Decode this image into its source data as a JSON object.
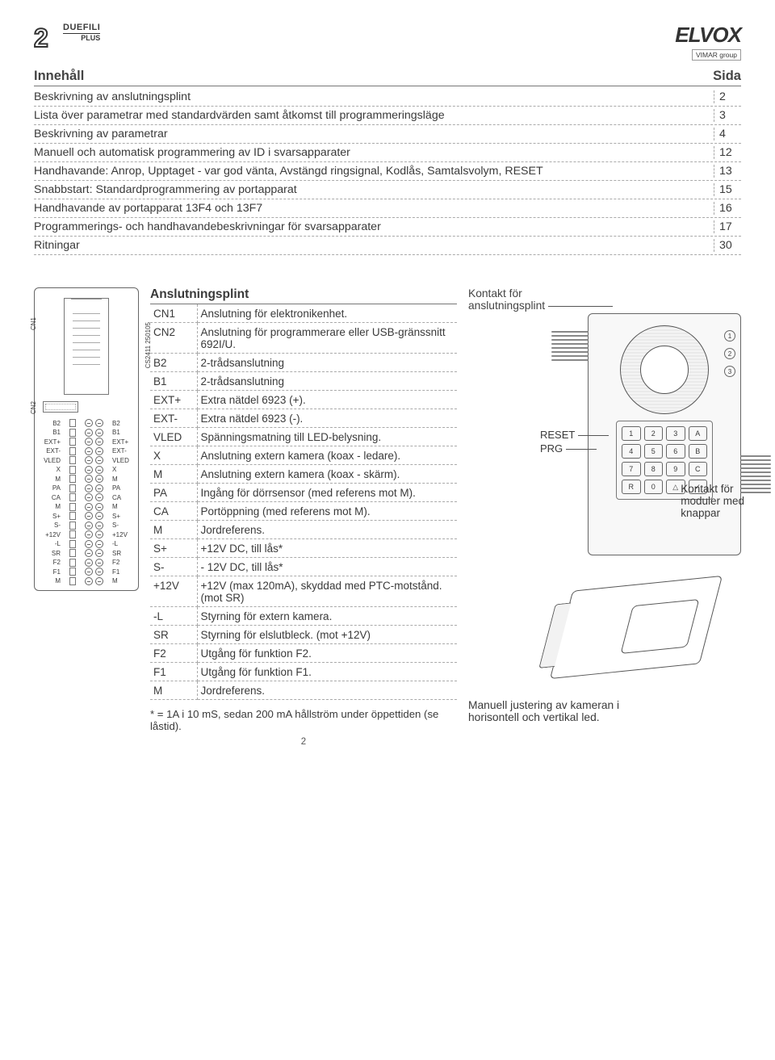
{
  "header": {
    "logo_left_main": "DUEFILI",
    "logo_left_sub": "PLUS",
    "logo_right_brand": "ELVOX",
    "logo_right_sub": "VIMAR group"
  },
  "toc": {
    "title_left": "Innehåll",
    "title_right": "Sida",
    "rows": [
      {
        "label": "Beskrivning av anslutningsplint",
        "page": "2"
      },
      {
        "label": "Lista över parametrar med standardvärden samt åtkomst till programmeringsläge",
        "page": "3"
      },
      {
        "label": "Beskrivning av parametrar",
        "page": "4"
      },
      {
        "label": "Manuell och automatisk programmering av ID i svarsapparater",
        "page": "12"
      },
      {
        "label": "Handhavande: Anrop, Upptaget - var god vänta, Avstängd ringsignal, Kodlås, Samtalsvolym, RESET",
        "page": "13"
      },
      {
        "label": "Snabbstart: Standardprogrammering av portapparat",
        "page": "15"
      },
      {
        "label": "Handhavande av portapparat 13F4 och 13F7",
        "page": "16"
      },
      {
        "label": "Programmerings- och handhavandebeskrivningar för svarsapparater",
        "page": "17"
      },
      {
        "label": "Ritningar",
        "page": "30"
      }
    ]
  },
  "splint": {
    "cn1": "CN1",
    "cn2": "CN2",
    "cs": "CS2411 250105",
    "terms": [
      "B2",
      "B1",
      "EXT+",
      "EXT-",
      "VLED",
      "X",
      "M",
      "PA",
      "CA",
      "M",
      "S+",
      "S-",
      "+12V",
      "-L",
      "SR",
      "F2",
      "F1",
      "M"
    ]
  },
  "atable": {
    "title": "Anslutningsplint",
    "rows": [
      {
        "k": "CN1",
        "v": "Anslutning för elektronikenhet."
      },
      {
        "k": "CN2",
        "v": "Anslutning för programmerare eller USB-gränssnitt 692I/U."
      },
      {
        "k": "B2",
        "v": "2-trådsanslutning"
      },
      {
        "k": "B1",
        "v": "2-trådsanslutning"
      },
      {
        "k": "EXT+",
        "v": "Extra nätdel 6923 (+)."
      },
      {
        "k": "EXT-",
        "v": "Extra nätdel 6923 (-)."
      },
      {
        "k": "VLED",
        "v": "Spänningsmatning till LED-belysning."
      },
      {
        "k": "X",
        "v": "Anslutning extern kamera (koax - ledare)."
      },
      {
        "k": "M",
        "v": "Anslutning extern kamera (koax - skärm)."
      },
      {
        "k": "PA",
        "v": "Ingång för dörrsensor (med referens mot M)."
      },
      {
        "k": "CA",
        "v": "Portöppning (med referens mot M)."
      },
      {
        "k": "M",
        "v": "Jordreferens."
      },
      {
        "k": "S+",
        "v": "+12V DC, till lås*"
      },
      {
        "k": "S-",
        "v": "- 12V DC, till lås*"
      },
      {
        "k": "+12V",
        "v": "+12V (max 120mA), skyddad med PTC-motstånd. (mot SR)"
      },
      {
        "k": "-L",
        "v": "Styrning för extern kamera."
      },
      {
        "k": "SR",
        "v": "Styrning för elslutbleck. (mot +12V)"
      },
      {
        "k": "F2",
        "v": "Utgång för funktion F2."
      },
      {
        "k": "F1",
        "v": "Utgång för funktion F1."
      },
      {
        "k": "M",
        "v": "Jordreferens."
      }
    ],
    "footnote": "* = 1A i 10 mS, sedan 200 mA hållström under öppettiden (se låstid).",
    "page_number": "2"
  },
  "right": {
    "kontakt_splint_1": "Kontakt för",
    "kontakt_splint_2": "anslutningsplint",
    "reset": "RESET",
    "prg": "PRG",
    "side_nums": [
      "1",
      "2",
      "3"
    ],
    "keys": [
      "1",
      "2",
      "3",
      "A",
      "4",
      "5",
      "6",
      "B",
      "7",
      "8",
      "9",
      "C",
      "R",
      "0",
      "△",
      "✓"
    ],
    "kontakt_mod_1": "Kontakt för",
    "kontakt_mod_2": "moduler med",
    "kontakt_mod_3": "knappar",
    "cam_caption_1": "Manuell justering av kameran i",
    "cam_caption_2": "horisontell och vertikal led."
  },
  "colors": {
    "text": "#3a3a3a",
    "rule": "#777777",
    "dash": "#aaaaaa"
  }
}
